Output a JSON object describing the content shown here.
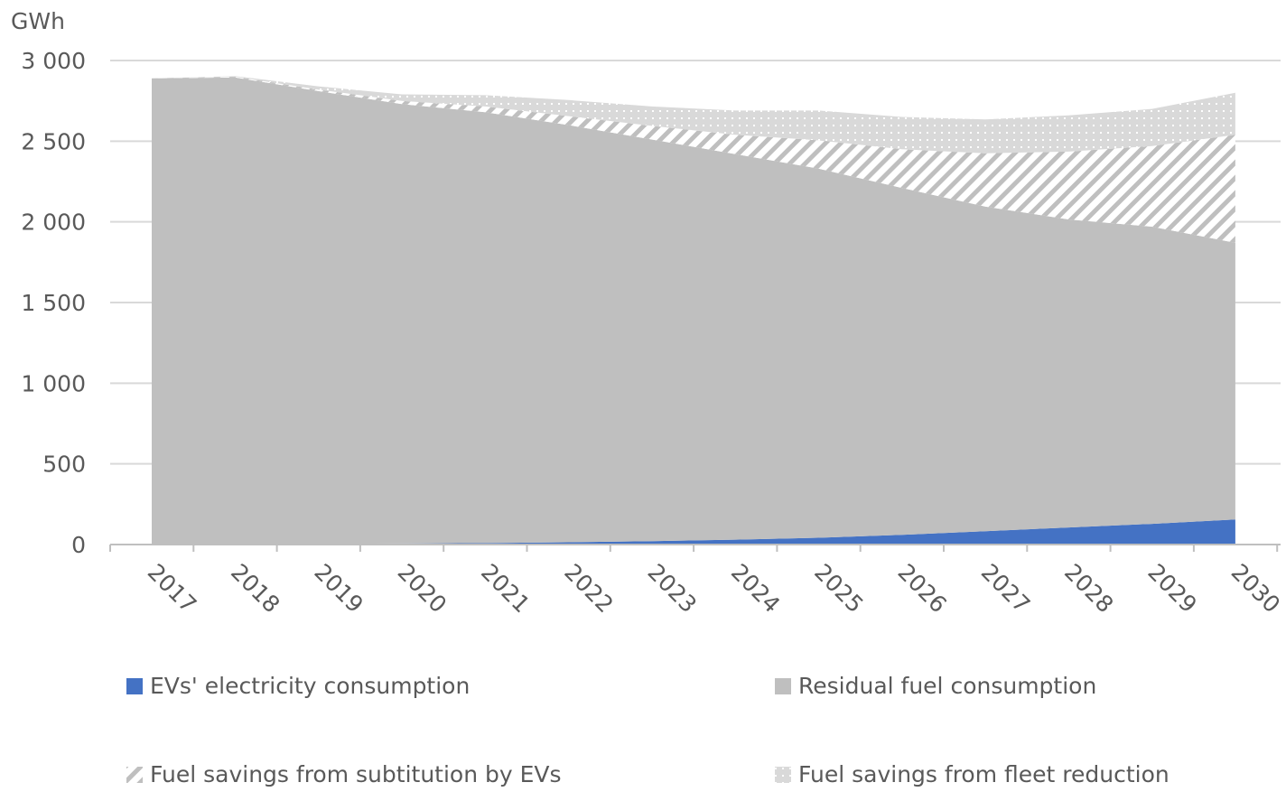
{
  "chart_data": {
    "type": "area",
    "stacked": true,
    "ylabel": "GWh",
    "ylim": [
      0,
      3000
    ],
    "yticks": [
      0,
      500,
      1000,
      1500,
      2000,
      2500,
      3000
    ],
    "ytick_labels": [
      "0",
      "500",
      "1 000",
      "1 500",
      "2 000",
      "2 500",
      "3 000"
    ],
    "grid": true,
    "legend_position": "bottom",
    "categories": [
      "2017",
      "2018",
      "2019",
      "2020",
      "2021",
      "2022",
      "2023",
      "2024",
      "2025",
      "2026",
      "2027",
      "2028",
      "2029",
      "2030"
    ],
    "series": [
      {
        "name": "EVs' electricity consumption",
        "color": "#4472C4",
        "pattern": "solid",
        "values": [
          2,
          3,
          4,
          6,
          9,
          14,
          21,
          30,
          42,
          60,
          82,
          106,
          128,
          155
        ]
      },
      {
        "name": "Residual fuel consumption",
        "color": "#BFBFBF",
        "pattern": "solid",
        "values": [
          2888,
          2892,
          2806,
          2724,
          2671,
          2586,
          2489,
          2390,
          2288,
          2150,
          2013,
          1909,
          1842,
          1715
        ]
      },
      {
        "name": "Fuel savings from subtitution by EVs",
        "color": "#BFBFBF",
        "pattern": "diagonal-hatch",
        "values": [
          0,
          5,
          10,
          20,
          35,
          55,
          85,
          120,
          175,
          240,
          330,
          420,
          500,
          670
        ]
      },
      {
        "name": "Fuel savings from fleet reduction",
        "color": "#D9D9D9",
        "pattern": "dots",
        "values": [
          0,
          3,
          20,
          40,
          70,
          100,
          120,
          150,
          185,
          200,
          210,
          225,
          230,
          260
        ]
      }
    ]
  }
}
